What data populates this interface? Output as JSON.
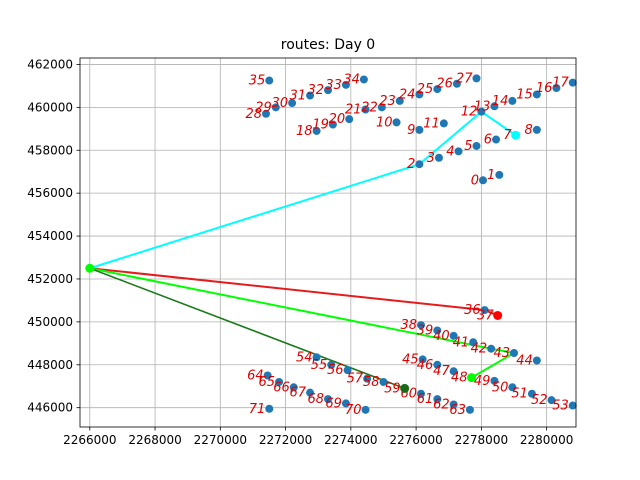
{
  "chart_data": {
    "type": "scatter",
    "title": "routes: Day 0",
    "xlabel": "",
    "ylabel": "",
    "xlim": [
      2265700,
      2280900
    ],
    "ylim": [
      445100,
      462300
    ],
    "x_ticks": [
      2266000,
      2268000,
      2270000,
      2272000,
      2274000,
      2276000,
      2278000,
      2280000
    ],
    "y_ticks": [
      446000,
      448000,
      450000,
      452000,
      454000,
      456000,
      458000,
      460000,
      462000
    ],
    "x_tick_labels": [
      "2266000",
      "2268000",
      "2270000",
      "2272000",
      "2274000",
      "2276000",
      "2278000",
      "2280000"
    ],
    "y_tick_labels": [
      "446000",
      "448000",
      "450000",
      "452000",
      "454000",
      "456000",
      "458000",
      "460000",
      "462000"
    ],
    "grid": true,
    "colors": {
      "points": "#1f77b4",
      "labels": "#dd0000",
      "route_cyan": "#00ffff",
      "route_red": "#e51c1c",
      "route_lime": "#00ff00",
      "route_green": "#1a7a1a",
      "depot": "#00ff00"
    },
    "depot": [
      2266000,
      452500
    ],
    "points": [
      {
        "id": "0",
        "x": 2278050,
        "y": 456600
      },
      {
        "id": "1",
        "x": 2278550,
        "y": 456850
      },
      {
        "id": "2",
        "x": 2276100,
        "y": 457350
      },
      {
        "id": "3",
        "x": 2276700,
        "y": 457650
      },
      {
        "id": "4",
        "x": 2277300,
        "y": 457950
      },
      {
        "id": "5",
        "x": 2277850,
        "y": 458200
      },
      {
        "id": "6",
        "x": 2278450,
        "y": 458500
      },
      {
        "id": "7",
        "x": 2279050,
        "y": 458700
      },
      {
        "id": "8",
        "x": 2279700,
        "y": 458950
      },
      {
        "id": "9",
        "x": 2276100,
        "y": 458950
      },
      {
        "id": "10",
        "x": 2275400,
        "y": 459300
      },
      {
        "id": "11",
        "x": 2276850,
        "y": 459250
      },
      {
        "id": "12",
        "x": 2278000,
        "y": 459800
      },
      {
        "id": "13",
        "x": 2278400,
        "y": 460050
      },
      {
        "id": "14",
        "x": 2278950,
        "y": 460300
      },
      {
        "id": "15",
        "x": 2279700,
        "y": 460600
      },
      {
        "id": "16",
        "x": 2280300,
        "y": 460900
      },
      {
        "id": "17",
        "x": 2280800,
        "y": 461150
      },
      {
        "id": "18",
        "x": 2272950,
        "y": 458900
      },
      {
        "id": "19",
        "x": 2273450,
        "y": 459200
      },
      {
        "id": "20",
        "x": 2273950,
        "y": 459450
      },
      {
        "id": "21",
        "x": 2274450,
        "y": 459900
      },
      {
        "id": "22",
        "x": 2274950,
        "y": 460000
      },
      {
        "id": "23",
        "x": 2275500,
        "y": 460300
      },
      {
        "id": "24",
        "x": 2276100,
        "y": 460600
      },
      {
        "id": "25",
        "x": 2276650,
        "y": 460850
      },
      {
        "id": "26",
        "x": 2277250,
        "y": 461100
      },
      {
        "id": "27",
        "x": 2277850,
        "y": 461350
      },
      {
        "id": "28",
        "x": 2271400,
        "y": 459700
      },
      {
        "id": "29",
        "x": 2271700,
        "y": 460000
      },
      {
        "id": "30",
        "x": 2272200,
        "y": 460200
      },
      {
        "id": "31",
        "x": 2272750,
        "y": 460550
      },
      {
        "id": "32",
        "x": 2273300,
        "y": 460800
      },
      {
        "id": "33",
        "x": 2273850,
        "y": 461050
      },
      {
        "id": "34",
        "x": 2274400,
        "y": 461300
      },
      {
        "id": "35",
        "x": 2271500,
        "y": 461250
      },
      {
        "id": "36",
        "x": 2278100,
        "y": 450550
      },
      {
        "id": "37",
        "x": 2278500,
        "y": 450300
      },
      {
        "id": "38",
        "x": 2276150,
        "y": 449850
      },
      {
        "id": "39",
        "x": 2276650,
        "y": 449600
      },
      {
        "id": "40",
        "x": 2277150,
        "y": 449350
      },
      {
        "id": "41",
        "x": 2277750,
        "y": 449050
      },
      {
        "id": "42",
        "x": 2278300,
        "y": 448750
      },
      {
        "id": "43",
        "x": 2279000,
        "y": 448550
      },
      {
        "id": "44",
        "x": 2279700,
        "y": 448200
      },
      {
        "id": "45",
        "x": 2276200,
        "y": 448250
      },
      {
        "id": "46",
        "x": 2276650,
        "y": 448000
      },
      {
        "id": "47",
        "x": 2277150,
        "y": 447700
      },
      {
        "id": "48",
        "x": 2277700,
        "y": 447400
      },
      {
        "id": "49",
        "x": 2278400,
        "y": 447250
      },
      {
        "id": "50",
        "x": 2278950,
        "y": 446950
      },
      {
        "id": "51",
        "x": 2279550,
        "y": 446650
      },
      {
        "id": "52",
        "x": 2280150,
        "y": 446350
      },
      {
        "id": "53",
        "x": 2280800,
        "y": 446100
      },
      {
        "id": "54",
        "x": 2272950,
        "y": 448350
      },
      {
        "id": "55",
        "x": 2273400,
        "y": 448000
      },
      {
        "id": "56",
        "x": 2273900,
        "y": 447750
      },
      {
        "id": "57",
        "x": 2274500,
        "y": 447350
      },
      {
        "id": "58",
        "x": 2275000,
        "y": 447200
      },
      {
        "id": "59",
        "x": 2275650,
        "y": 446900
      },
      {
        "id": "60",
        "x": 2276150,
        "y": 446650
      },
      {
        "id": "61",
        "x": 2276650,
        "y": 446400
      },
      {
        "id": "62",
        "x": 2277150,
        "y": 446150
      },
      {
        "id": "63",
        "x": 2277650,
        "y": 445900
      },
      {
        "id": "64",
        "x": 2271450,
        "y": 447500
      },
      {
        "id": "65",
        "x": 2271800,
        "y": 447200
      },
      {
        "id": "66",
        "x": 2272250,
        "y": 446950
      },
      {
        "id": "67",
        "x": 2272750,
        "y": 446700
      },
      {
        "id": "68",
        "x": 2273300,
        "y": 446400
      },
      {
        "id": "69",
        "x": 2273850,
        "y": 446200
      },
      {
        "id": "70",
        "x": 2274450,
        "y": 445900
      },
      {
        "id": "71",
        "x": 2271500,
        "y": 445950
      }
    ],
    "routes": [
      {
        "color_key": "route_cyan",
        "stroke_width": 2,
        "path": [
          [
            2266000,
            452500
          ],
          [
            2276100,
            457350
          ],
          [
            2278000,
            459800
          ],
          [
            2279050,
            458700
          ]
        ],
        "end_marker": true,
        "end_marker_color": "#00ffff"
      },
      {
        "color_key": "route_red",
        "stroke_width": 2,
        "path": [
          [
            2266000,
            452500
          ],
          [
            2278100,
            450550
          ],
          [
            2278500,
            450300
          ]
        ],
        "end_marker": true,
        "end_marker_color": "#ff0000"
      },
      {
        "color_key": "route_lime",
        "stroke_width": 2,
        "path": [
          [
            2266000,
            452500
          ],
          [
            2278300,
            448750
          ],
          [
            2279000,
            448550
          ],
          [
            2277700,
            447400
          ]
        ],
        "end_marker": true,
        "end_marker_color": "#00ff00"
      },
      {
        "color_key": "route_green",
        "stroke_width": 1.6,
        "path": [
          [
            2266000,
            452500
          ],
          [
            2275650,
            446900
          ]
        ],
        "end_marker": true,
        "end_marker_color": "#1a6a1a"
      }
    ]
  }
}
